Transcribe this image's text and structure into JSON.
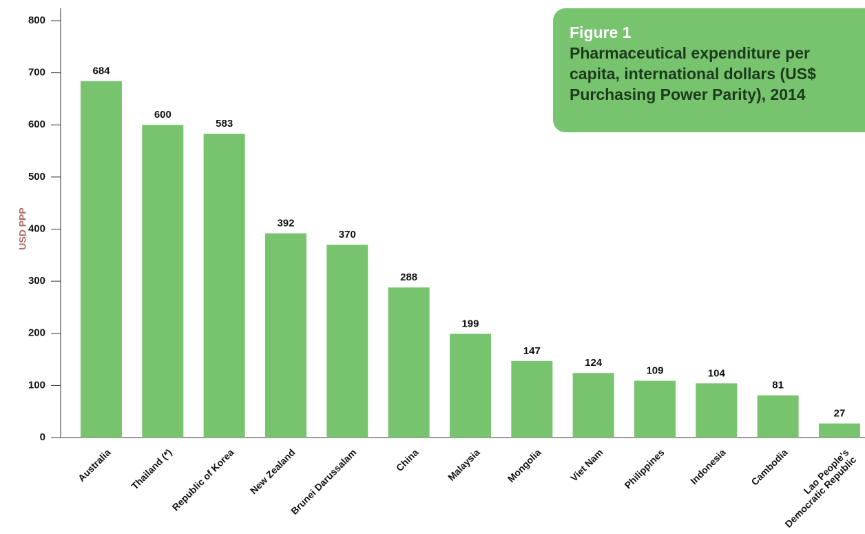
{
  "chart_data": {
    "type": "bar",
    "figure_label": "Figure 1",
    "title": "Pharmaceutical expenditure per capita, international dollars (US$ Purchasing Power Parity), 2014",
    "y_label": "USD PPP",
    "categories": [
      "Australia",
      "Thailand (*)",
      "Republic of Korea",
      "New Zealand",
      "Brunei Darussalam",
      "China",
      "Malaysia",
      "Mongolia",
      "Viet Nam",
      "Philippines",
      "Indonesia",
      "Cambodia",
      "Lao People's Democratic Republic"
    ],
    "values": [
      684,
      600,
      583,
      392,
      370,
      288,
      199,
      147,
      124,
      109,
      104,
      81,
      27
    ],
    "color": "#78c46e",
    "ylim": [
      0,
      800
    ],
    "yticks": [
      0,
      100,
      200,
      300,
      400,
      500,
      600,
      700,
      800
    ],
    "grid": false
  }
}
